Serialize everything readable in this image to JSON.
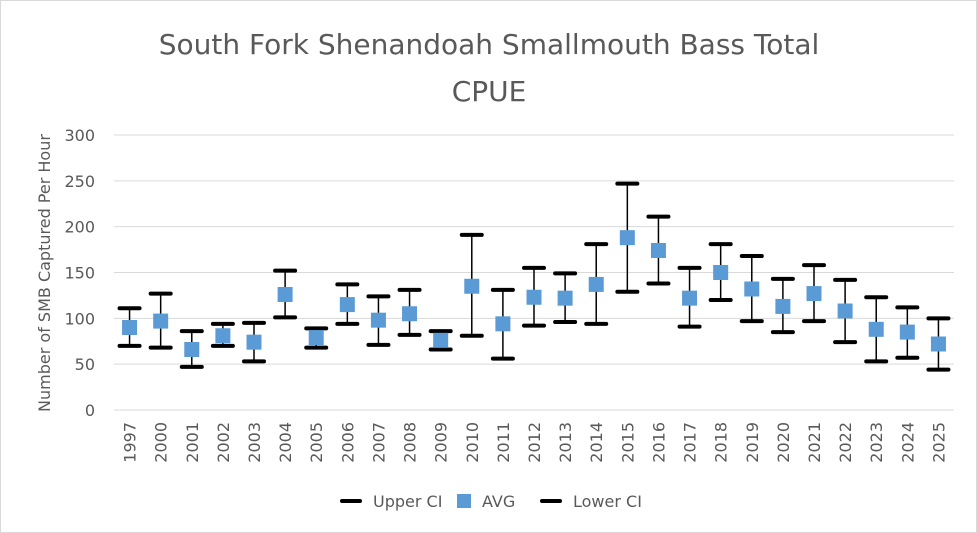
{
  "chart_data": {
    "type": "scatter",
    "title_line1": "South Fork Shenandoah Smallmouth Bass Total",
    "title_line2": "CPUE",
    "xlabel": "",
    "ylabel": "Number of SMB Captured Per Hour",
    "ylim": [
      0,
      300
    ],
    "yticks": [
      "0",
      "50",
      "100",
      "150",
      "200",
      "250",
      "300"
    ],
    "grid": true,
    "legend_position": "bottom",
    "categories": [
      "1997",
      "2000",
      "2001",
      "2002",
      "2003",
      "2004",
      "2005",
      "2006",
      "2007",
      "2008",
      "2009",
      "2010",
      "2011",
      "2012",
      "2013",
      "2014",
      "2015",
      "2016",
      "2017",
      "2018",
      "2019",
      "2020",
      "2021",
      "2022",
      "2023",
      "2024",
      "2025"
    ],
    "series": [
      {
        "name": "Upper CI",
        "color": "#000000",
        "marker": "dash",
        "values": [
          111,
          127,
          86,
          94,
          95,
          152,
          89,
          137,
          124,
          131,
          86,
          191,
          131,
          155,
          149,
          181,
          247,
          211,
          155,
          181,
          168,
          143,
          158,
          142,
          123,
          112,
          100
        ]
      },
      {
        "name": "AVG",
        "color": "#5b9bd5",
        "marker": "square",
        "values": [
          90,
          97,
          66,
          81,
          74,
          126,
          79,
          115,
          98,
          105,
          76,
          135,
          94,
          123,
          122,
          137,
          188,
          174,
          122,
          150,
          132,
          113,
          127,
          108,
          88,
          85,
          72
        ]
      },
      {
        "name": "Lower CI",
        "color": "#000000",
        "marker": "dash",
        "values": [
          70,
          68,
          47,
          70,
          53,
          101,
          68,
          94,
          71,
          82,
          66,
          81,
          56,
          92,
          96,
          94,
          129,
          138,
          91,
          120,
          97,
          85,
          97,
          74,
          53,
          57,
          44
        ]
      }
    ]
  }
}
